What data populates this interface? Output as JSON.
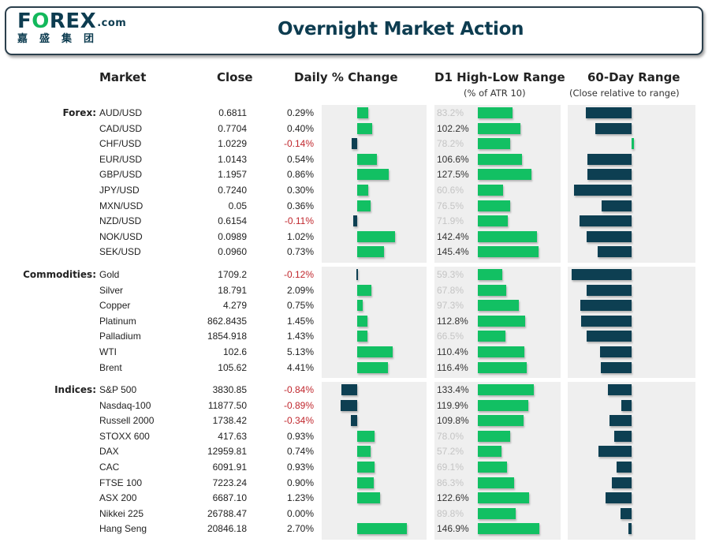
{
  "header": {
    "logo_main_pre": "F",
    "logo_main_o": "O",
    "logo_main_post": "REX",
    "logo_suffix": ".com",
    "logo_sub": "嘉盛集团",
    "title": "Overnight Market Action"
  },
  "columns": {
    "market": "Market",
    "close": "Close",
    "daily": "Daily % Change",
    "d1": "D1 High-Low Range",
    "d1_sub": "(% of ATR 10)",
    "range60": "60-Day Range",
    "range60_sub": "(Close relative to range)"
  },
  "colors": {
    "positive_bar": "#12c063",
    "negative_bar": "#0d3f52",
    "negative_text": "#c0272d",
    "brand": "#0d3c50",
    "panel_bg": "#efefef"
  },
  "chart_data": {
    "type": "table",
    "title": "Overnight Market Action",
    "notes": "Daily % bars scaled per group; D1 labels below 100% shown faded; 60-day range value is close relative to 60-day range (approx., -100 to 100, estimated from bar lengths)",
    "groups": [
      {
        "label": "Forex:",
        "rows": [
          {
            "market": "AUD/USD",
            "close": "0.6811",
            "daily_pct": 0.29,
            "daily_label": "0.29%",
            "d1_pct": 83.2,
            "d1_label": "83.2%",
            "range60": -72
          },
          {
            "market": "CAD/USD",
            "close": "0.7704",
            "daily_pct": 0.4,
            "daily_label": "0.40%",
            "d1_pct": 102.2,
            "d1_label": "102.2%",
            "range60": -57
          },
          {
            "market": "CHF/USD",
            "close": "1.0229",
            "daily_pct": -0.14,
            "daily_label": "-0.14%",
            "d1_pct": 78.2,
            "d1_label": "78.2%",
            "range60": 3
          },
          {
            "market": "EUR/USD",
            "close": "1.0143",
            "daily_pct": 0.54,
            "daily_label": "0.54%",
            "d1_pct": 106.6,
            "d1_label": "106.6%",
            "range60": -70
          },
          {
            "market": "GBP/USD",
            "close": "1.1957",
            "daily_pct": 0.86,
            "daily_label": "0.86%",
            "d1_pct": 127.5,
            "d1_label": "127.5%",
            "range60": -70
          },
          {
            "market": "JPY/USD",
            "close": "0.7240",
            "daily_pct": 0.3,
            "daily_label": "0.30%",
            "d1_pct": 60.6,
            "d1_label": "60.6%",
            "range60": -91
          },
          {
            "market": "MXN/USD",
            "close": "0.05",
            "daily_pct": 0.36,
            "daily_label": "0.36%",
            "d1_pct": 76.5,
            "d1_label": "76.5%",
            "range60": -48
          },
          {
            "market": "NZD/USD",
            "close": "0.6154",
            "daily_pct": -0.11,
            "daily_label": "-0.11%",
            "d1_pct": 71.9,
            "d1_label": "71.9%",
            "range60": -82
          },
          {
            "market": "NOK/USD",
            "close": "0.0989",
            "daily_pct": 1.02,
            "daily_label": "1.02%",
            "d1_pct": 142.4,
            "d1_label": "142.4%",
            "range60": -71
          },
          {
            "market": "SEK/USD",
            "close": "0.0960",
            "daily_pct": 0.73,
            "daily_label": "0.73%",
            "d1_pct": 145.4,
            "d1_label": "145.4%",
            "range60": -54
          }
        ]
      },
      {
        "label": "Commodities:",
        "rows": [
          {
            "market": "Gold",
            "close": "1709.2",
            "daily_pct": -0.12,
            "daily_label": "-0.12%",
            "d1_pct": 59.3,
            "d1_label": "59.3%",
            "range60": -95
          },
          {
            "market": "Silver",
            "close": "18.791",
            "daily_pct": 2.09,
            "daily_label": "2.09%",
            "d1_pct": 67.8,
            "d1_label": "67.8%",
            "range60": -71
          },
          {
            "market": "Copper",
            "close": "4.279",
            "daily_pct": 0.75,
            "daily_label": "0.75%",
            "d1_pct": 97.3,
            "d1_label": "97.3%",
            "range60": -81
          },
          {
            "market": "Platinum",
            "close": "862.8435",
            "daily_pct": 1.45,
            "daily_label": "1.45%",
            "d1_pct": 112.8,
            "d1_label": "112.8%",
            "range60": -80
          },
          {
            "market": "Palladium",
            "close": "1854.918",
            "daily_pct": 1.43,
            "daily_label": "1.43%",
            "d1_pct": 66.5,
            "d1_label": "66.5%",
            "range60": -71
          },
          {
            "market": "WTI",
            "close": "102.6",
            "daily_pct": 5.13,
            "daily_label": "5.13%",
            "d1_pct": 110.4,
            "d1_label": "110.4%",
            "range60": -50
          },
          {
            "market": "Brent",
            "close": "105.62",
            "daily_pct": 4.41,
            "daily_label": "4.41%",
            "d1_pct": 116.4,
            "d1_label": "116.4%",
            "range60": -49
          }
        ]
      },
      {
        "label": "Indices:",
        "rows": [
          {
            "market": "S&P 500",
            "close": "3830.85",
            "daily_pct": -0.84,
            "daily_label": "-0.84%",
            "d1_pct": 133.4,
            "d1_label": "133.4%",
            "range60": -38
          },
          {
            "market": "Nasdaq-100",
            "close": "11877.50",
            "daily_pct": -0.89,
            "daily_label": "-0.89%",
            "d1_pct": 119.9,
            "d1_label": "119.9%",
            "range60": -16
          },
          {
            "market": "Russell 2000",
            "close": "1738.42",
            "daily_pct": -0.34,
            "daily_label": "-0.34%",
            "d1_pct": 109.8,
            "d1_label": "109.8%",
            "range60": -35
          },
          {
            "market": "STOXX 600",
            "close": "417.63",
            "daily_pct": 0.93,
            "daily_label": "0.93%",
            "d1_pct": 78.0,
            "d1_label": "78.0%",
            "range60": -27
          },
          {
            "market": "DAX",
            "close": "12959.81",
            "daily_pct": 0.74,
            "daily_label": "0.74%",
            "d1_pct": 57.2,
            "d1_label": "57.2%",
            "range60": -52
          },
          {
            "market": "CAC",
            "close": "6091.91",
            "daily_pct": 0.93,
            "daily_label": "0.93%",
            "d1_pct": 69.1,
            "d1_label": "69.1%",
            "range60": -24
          },
          {
            "market": "FTSE 100",
            "close": "7223.24",
            "daily_pct": 0.9,
            "daily_label": "0.90%",
            "d1_pct": 86.3,
            "d1_label": "86.3%",
            "range60": -31
          },
          {
            "market": "ASX 200",
            "close": "6687.10",
            "daily_pct": 1.23,
            "daily_label": "1.23%",
            "d1_pct": 122.6,
            "d1_label": "122.6%",
            "range60": -41
          },
          {
            "market": "Nikkei 225",
            "close": "26788.47",
            "daily_pct": 0.0,
            "daily_label": "0.00%",
            "d1_pct": 89.8,
            "d1_label": "89.8%",
            "range60": -17
          },
          {
            "market": "Hang Seng",
            "close": "20846.18",
            "daily_pct": 2.7,
            "daily_label": "2.70%",
            "d1_pct": 146.9,
            "d1_label": "146.9%",
            "range60": -5
          }
        ]
      }
    ]
  }
}
